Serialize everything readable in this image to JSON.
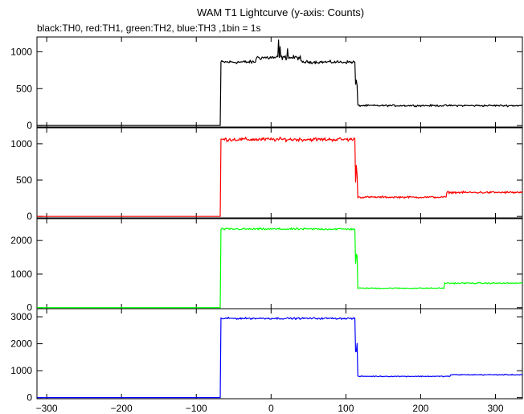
{
  "chart_data": {
    "type": "line",
    "title": "WAM T1 Lightcurve (y-axis: Counts)",
    "subtitle": "black:TH0, red:TH1, green:TH2, blue:TH3 ,1bin = 1s",
    "xlim": [
      -313,
      336
    ],
    "x_ticks": [
      -300,
      -200,
      -100,
      0,
      100,
      200,
      300
    ],
    "x_tick_labels": [
      "−300",
      "−200",
      "−100",
      "0",
      "100",
      "200",
      "300"
    ],
    "panels": [
      {
        "color": "#000000",
        "ylim": [
          -20,
          1200
        ],
        "y_ticks": [
          0,
          500,
          1000
        ],
        "segments": [
          {
            "x": [
              -313,
              -67
            ],
            "level": 0,
            "noise": 0
          },
          {
            "x": [
              -67,
              -20
            ],
            "level": 860,
            "noise": 35
          },
          {
            "x": [
              -20,
              40
            ],
            "level": 920,
            "noise": 45
          },
          {
            "x": [
              40,
              113
            ],
            "level": 860,
            "noise": 30
          },
          {
            "x": [
              113,
              116
            ],
            "level": 560,
            "noise": 200
          },
          {
            "x": [
              116,
              336
            ],
            "level": 270,
            "noise": 18
          }
        ],
        "spikes": [
          {
            "x": 10,
            "y": 1160
          },
          {
            "x": 12,
            "y": 1070
          },
          {
            "x": 22,
            "y": 1040
          }
        ]
      },
      {
        "color": "#ff0000",
        "ylim": [
          -20,
          1220
        ],
        "y_ticks": [
          0,
          500,
          1000
        ],
        "segments": [
          {
            "x": [
              -313,
              -67
            ],
            "level": 0,
            "noise": 0
          },
          {
            "x": [
              -67,
              113
            ],
            "level": 1060,
            "noise": 40
          },
          {
            "x": [
              113,
              116
            ],
            "level": 650,
            "noise": 250
          },
          {
            "x": [
              116,
              235
            ],
            "level": 265,
            "noise": 20
          },
          {
            "x": [
              235,
              336
            ],
            "level": 330,
            "noise": 22
          }
        ],
        "spikes": []
      },
      {
        "color": "#00ff00",
        "ylim": [
          -30,
          2650
        ],
        "y_ticks": [
          0,
          1000,
          2000
        ],
        "segments": [
          {
            "x": [
              -313,
              -67
            ],
            "level": 0,
            "noise": 0
          },
          {
            "x": [
              -67,
              113
            ],
            "level": 2340,
            "noise": 45
          },
          {
            "x": [
              113,
              116
            ],
            "level": 1400,
            "noise": 400
          },
          {
            "x": [
              116,
              232
            ],
            "level": 580,
            "noise": 25
          },
          {
            "x": [
              232,
              336
            ],
            "level": 730,
            "noise": 28
          }
        ],
        "spikes": []
      },
      {
        "color": "#0000ff",
        "ylim": [
          -40,
          3300
        ],
        "y_ticks": [
          0,
          1000,
          2000,
          3000
        ],
        "segments": [
          {
            "x": [
              -313,
              -67
            ],
            "level": 0,
            "noise": 0
          },
          {
            "x": [
              -67,
              113
            ],
            "level": 2940,
            "noise": 50
          },
          {
            "x": [
              113,
              116
            ],
            "level": 1800,
            "noise": 500
          },
          {
            "x": [
              116,
              240
            ],
            "level": 790,
            "noise": 25
          },
          {
            "x": [
              240,
              336
            ],
            "level": 850,
            "noise": 25
          }
        ],
        "spikes": []
      }
    ]
  }
}
